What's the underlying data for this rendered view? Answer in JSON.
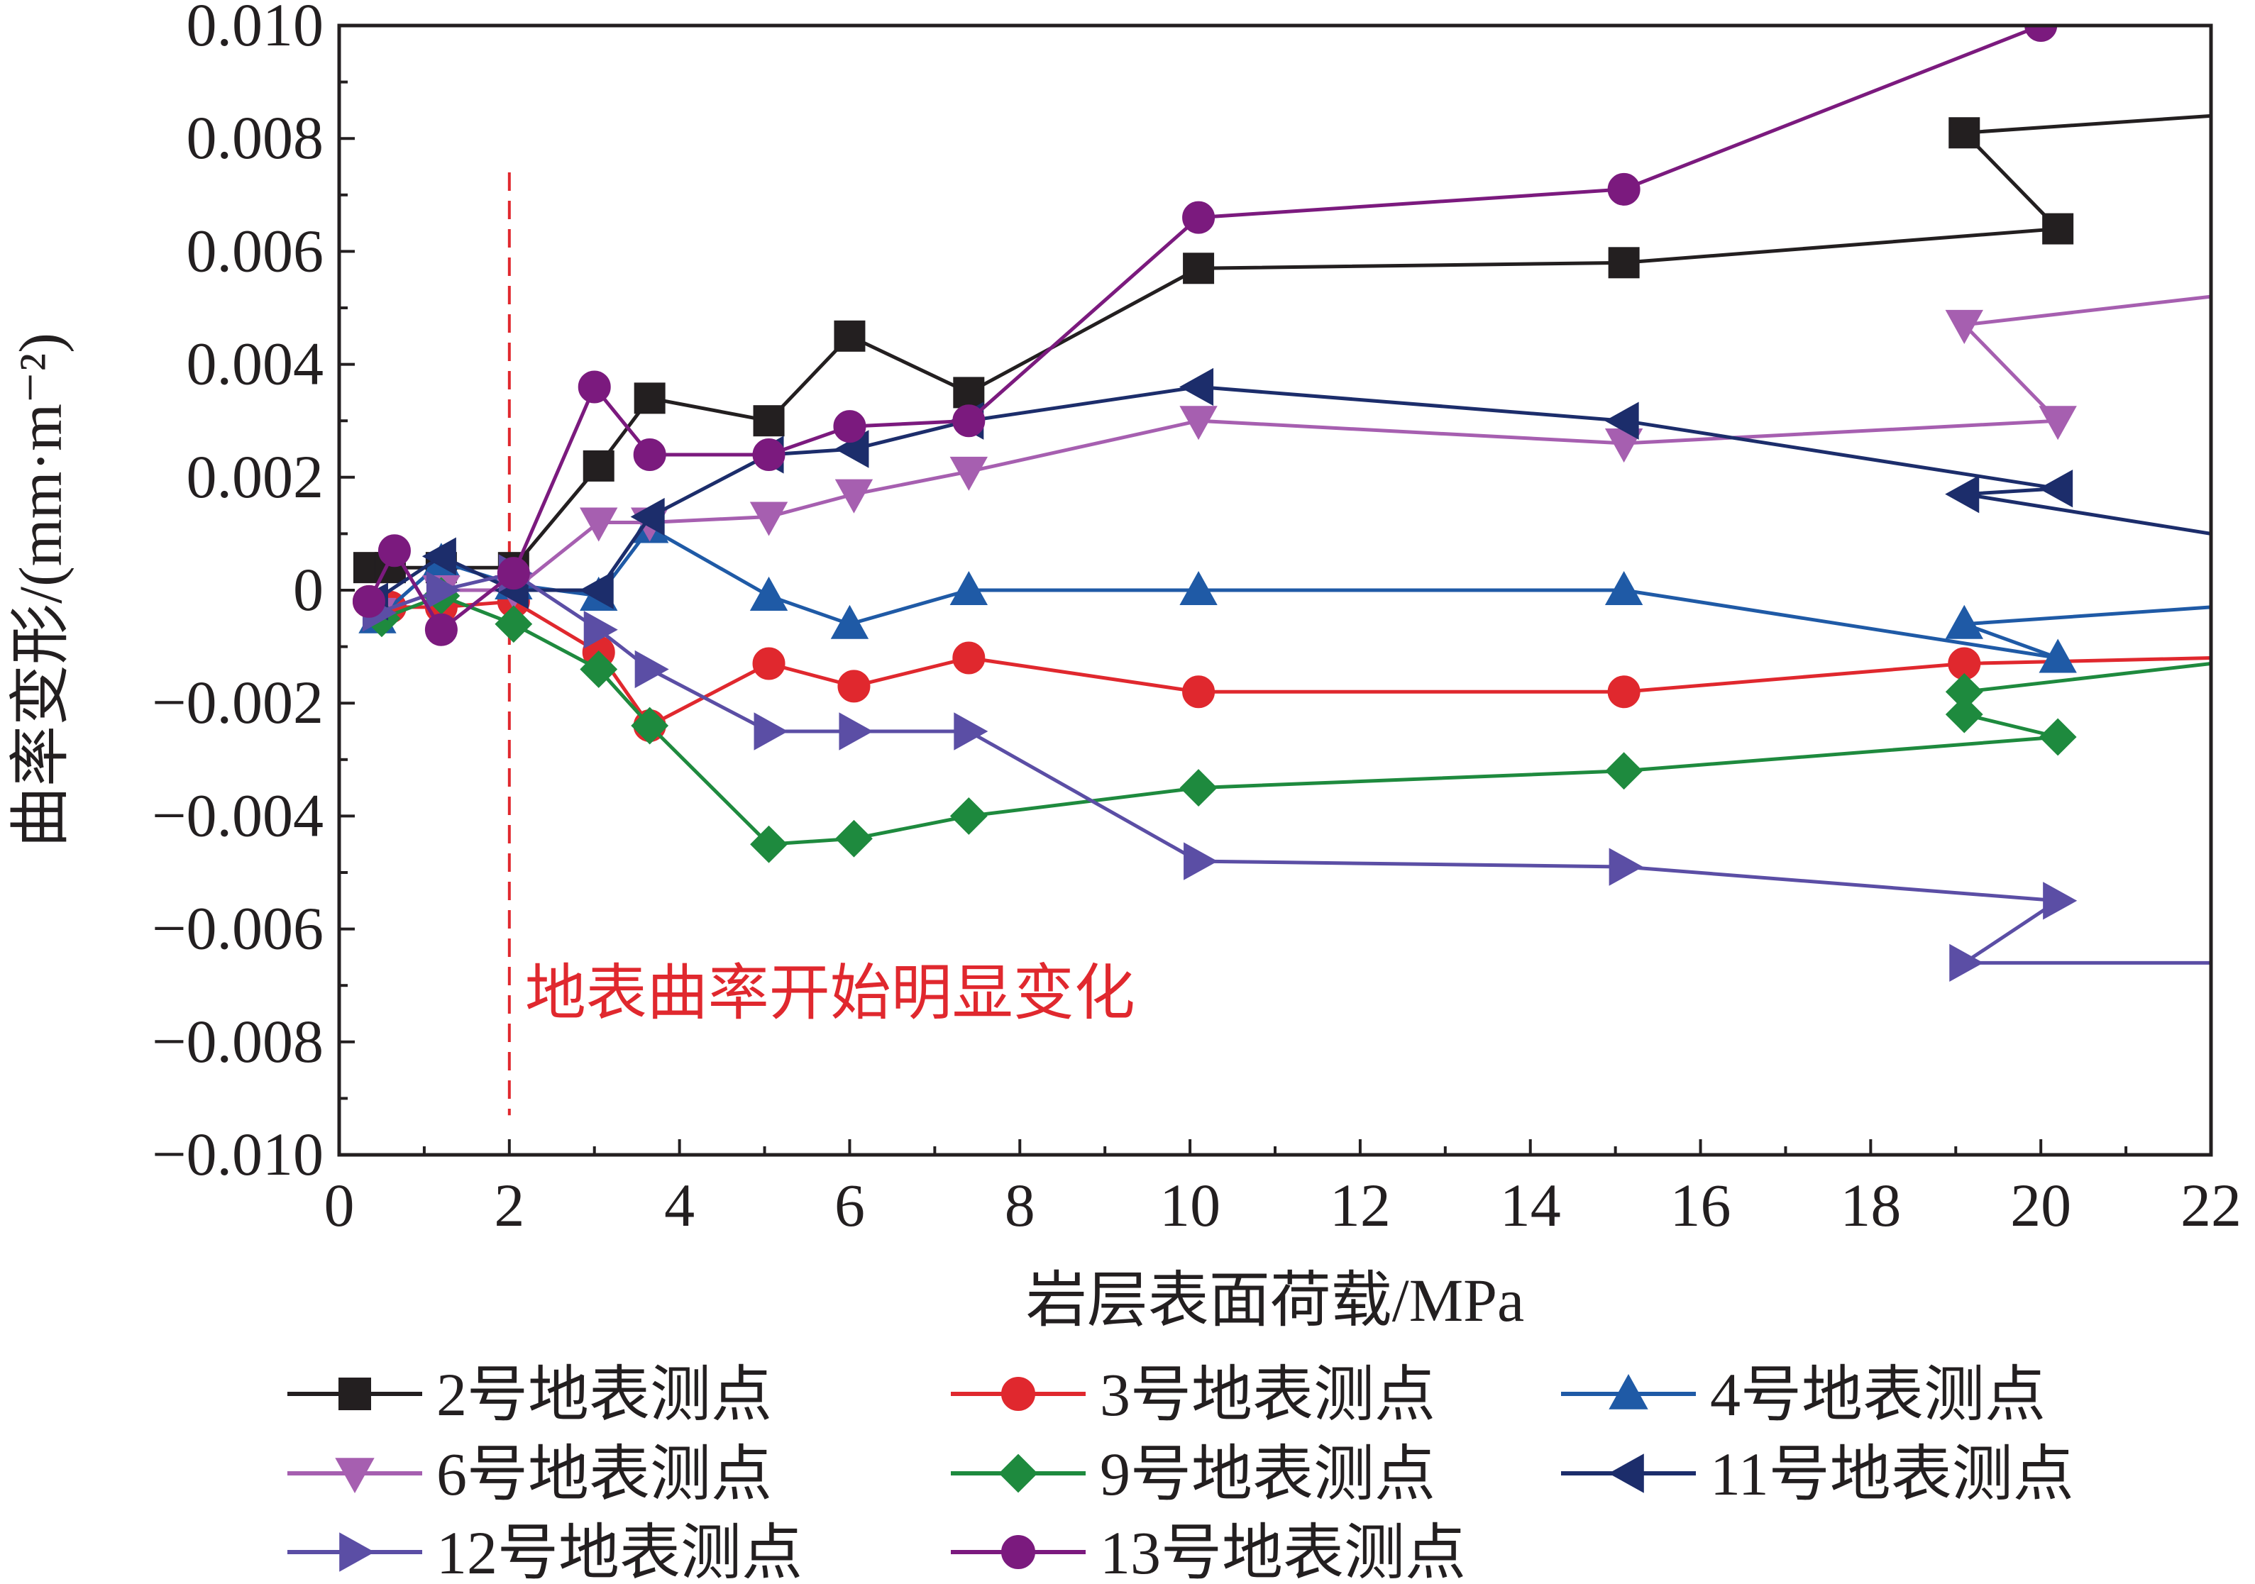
{
  "chart_data": {
    "type": "line",
    "title": "",
    "xlabel": "岩层表面荷载/MPa",
    "ylabel": "曲率变形/(mm·m⁻²)",
    "xlim": [
      0,
      22
    ],
    "ylim": [
      -0.01,
      0.01
    ],
    "xticks": [
      0,
      2,
      4,
      6,
      8,
      10,
      12,
      14,
      16,
      18,
      20,
      22
    ],
    "xtick_labels": [
      "0",
      "2",
      "4",
      "6",
      "8",
      "10",
      "12",
      "14",
      "16",
      "18",
      "20",
      "22"
    ],
    "yticks": [
      -0.01,
      -0.008,
      -0.006,
      -0.004,
      -0.002,
      0,
      0.002,
      0.004,
      0.006,
      0.008,
      0.01
    ],
    "ytick_labels": [
      "−0.010",
      "−0.008",
      "−0.006",
      "−0.004",
      "−0.002",
      "0",
      "0.002",
      "0.004",
      "0.006",
      "0.008",
      "0.010"
    ],
    "grid": false,
    "legend_position": "bottom",
    "annotation": {
      "text": "地表曲率开始明显变化",
      "x": 2.0,
      "color": "#e0282e"
    },
    "series": [
      {
        "name": "2号地表测点",
        "color": "#231f20",
        "marker": "square",
        "points": [
          [
            0.35,
            0.0004
          ],
          [
            0.6,
            0.0004
          ],
          [
            1.2,
            0.0004
          ],
          [
            2.05,
            0.0004
          ],
          [
            3.05,
            0.0022
          ],
          [
            3.65,
            0.0034
          ],
          [
            5.05,
            0.003
          ],
          [
            6.0,
            0.0045
          ],
          [
            7.4,
            0.0035
          ],
          [
            10.1,
            0.0057
          ],
          [
            15.1,
            0.0058
          ],
          [
            20.2,
            0.0064
          ],
          [
            19.1,
            0.0081
          ],
          [
            22.0,
            0.0084
          ]
        ]
      },
      {
        "name": "3号地表测点",
        "color": "#e0282e",
        "marker": "circle",
        "points": [
          [
            0.35,
            -0.0002
          ],
          [
            0.6,
            -0.0003
          ],
          [
            1.2,
            -0.0003
          ],
          [
            2.05,
            -0.0002
          ],
          [
            3.05,
            -0.0011
          ],
          [
            3.65,
            -0.0024
          ],
          [
            5.05,
            -0.0013
          ],
          [
            6.05,
            -0.0017
          ],
          [
            7.4,
            -0.0012
          ],
          [
            10.1,
            -0.0018
          ],
          [
            15.1,
            -0.0018
          ],
          [
            19.1,
            -0.0013
          ],
          [
            22.0,
            -0.0012
          ]
        ]
      },
      {
        "name": "4号地表测点",
        "color": "#1f5aa6",
        "marker": "triangle-up",
        "points": [
          [
            0.45,
            -0.0005
          ],
          [
            1.2,
            0.0005
          ],
          [
            2.05,
            0.0001
          ],
          [
            3.05,
            -0.0001
          ],
          [
            3.65,
            0.0011
          ],
          [
            5.05,
            -0.0001
          ],
          [
            6.0,
            -0.0006
          ],
          [
            7.4,
            0.0
          ],
          [
            10.1,
            0.0
          ],
          [
            15.1,
            0.0
          ],
          [
            20.2,
            -0.0012
          ],
          [
            19.1,
            -0.0006
          ],
          [
            22.0,
            -0.0003
          ]
        ]
      },
      {
        "name": "6号地表测点",
        "color": "#a65fb0",
        "marker": "triangle-down",
        "points": [
          [
            0.45,
            -0.0004
          ],
          [
            1.2,
            0.0
          ],
          [
            2.05,
            0.0
          ],
          [
            3.05,
            0.0012
          ],
          [
            3.65,
            0.0012
          ],
          [
            5.05,
            0.0013
          ],
          [
            6.05,
            0.0017
          ],
          [
            7.4,
            0.0021
          ],
          [
            10.1,
            0.003
          ],
          [
            15.1,
            0.0026
          ],
          [
            20.2,
            0.003
          ],
          [
            19.1,
            0.0047
          ],
          [
            22.0,
            0.0052
          ]
        ]
      },
      {
        "name": "9号地表测点",
        "color": "#1e8a3e",
        "marker": "diamond",
        "points": [
          [
            0.5,
            -0.0005
          ],
          [
            1.2,
            -0.0001
          ],
          [
            2.05,
            -0.0006
          ],
          [
            3.05,
            -0.0014
          ],
          [
            3.65,
            -0.0024
          ],
          [
            5.05,
            -0.0045
          ],
          [
            6.05,
            -0.0044
          ],
          [
            7.4,
            -0.004
          ],
          [
            10.1,
            -0.0035
          ],
          [
            15.1,
            -0.0032
          ],
          [
            20.2,
            -0.0026
          ],
          [
            19.1,
            -0.0022
          ],
          [
            19.1,
            -0.0018
          ],
          [
            22.0,
            -0.0013
          ]
        ]
      },
      {
        "name": "11号地表测点",
        "color": "#1c2d6b",
        "marker": "triangle-left",
        "points": [
          [
            0.4,
            -0.0002
          ],
          [
            1.2,
            0.0006
          ],
          [
            2.05,
            0.0
          ],
          [
            3.05,
            0.0
          ],
          [
            3.65,
            0.0013
          ],
          [
            5.05,
            0.0024
          ],
          [
            6.05,
            0.0025
          ],
          [
            7.4,
            0.003
          ],
          [
            10.1,
            0.0036
          ],
          [
            15.1,
            0.003
          ],
          [
            20.2,
            0.0018
          ],
          [
            19.1,
            0.0017
          ],
          [
            22.0,
            0.001
          ]
        ]
      },
      {
        "name": "12号地表测点",
        "color": "#5b4ea5",
        "marker": "triangle-right",
        "points": [
          [
            0.45,
            -0.0004
          ],
          [
            1.2,
            0.0
          ],
          [
            2.05,
            0.0003
          ],
          [
            3.05,
            -0.0007
          ],
          [
            3.65,
            -0.0014
          ],
          [
            5.05,
            -0.0025
          ],
          [
            6.05,
            -0.0025
          ],
          [
            7.4,
            -0.0025
          ],
          [
            10.1,
            -0.0048
          ],
          [
            15.1,
            -0.0049
          ],
          [
            20.2,
            -0.0055
          ],
          [
            19.1,
            -0.0066
          ],
          [
            22.0,
            -0.0066
          ]
        ]
      },
      {
        "name": "13号地表测点",
        "color": "#7b1a7e",
        "marker": "circle",
        "points": [
          [
            0.35,
            -0.0002
          ],
          [
            0.65,
            0.0007
          ],
          [
            1.2,
            -0.0007
          ],
          [
            2.05,
            0.0003
          ],
          [
            3.0,
            0.0036
          ],
          [
            3.65,
            0.0024
          ],
          [
            5.05,
            0.0024
          ],
          [
            6.0,
            0.0029
          ],
          [
            7.4,
            0.003
          ],
          [
            10.1,
            0.0066
          ],
          [
            15.1,
            0.0071
          ],
          [
            20.0,
            0.01
          ]
        ]
      }
    ]
  }
}
